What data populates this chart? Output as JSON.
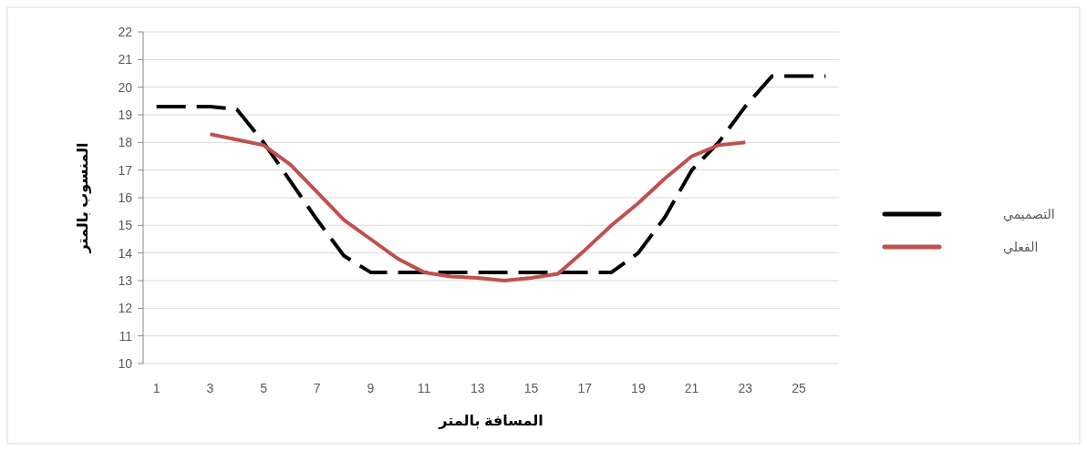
{
  "chart_data": {
    "type": "line",
    "xlabel": "المسافة بالمتر",
    "ylabel": "المنسوب بالمتر",
    "categories": [
      "1",
      null,
      "3",
      null,
      "5",
      null,
      "7",
      null,
      "9",
      null,
      "11",
      null,
      "13",
      null,
      "15",
      null,
      "17",
      null,
      "19",
      null,
      "21",
      null,
      "23",
      null,
      "25",
      null
    ],
    "series": [
      {
        "name": "التصميمي",
        "color": "#000000",
        "line_style": "dashed",
        "values": [
          19.3,
          19.3,
          19.3,
          19.2,
          18.0,
          16.6,
          15.2,
          13.9,
          13.3,
          13.3,
          13.3,
          13.3,
          13.3,
          13.3,
          13.3,
          13.3,
          13.3,
          13.3,
          14.0,
          15.3,
          17.0,
          18.0,
          19.3,
          20.4,
          20.4,
          20.4
        ]
      },
      {
        "name": "الفعلي",
        "color": "#c0504d",
        "line_style": "solid",
        "values": [
          null,
          null,
          18.3,
          18.1,
          17.9,
          17.2,
          16.2,
          15.2,
          14.5,
          13.8,
          13.3,
          13.15,
          13.1,
          13.0,
          13.1,
          13.25,
          14.1,
          15.0,
          15.8,
          16.7,
          17.5,
          17.9,
          18.0,
          null,
          null,
          null
        ]
      }
    ],
    "ylim": [
      10,
      22
    ],
    "yticks": [
      10,
      11,
      12,
      13,
      14,
      15,
      16,
      17,
      18,
      19,
      20,
      21,
      22
    ],
    "grid": "y",
    "legend": "right"
  }
}
